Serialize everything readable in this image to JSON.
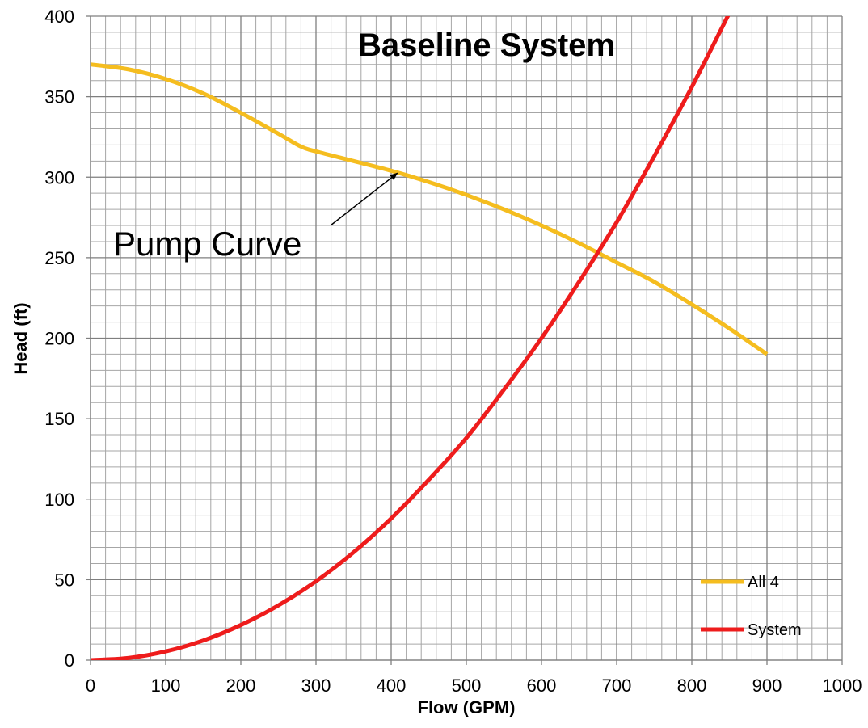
{
  "chart_data": {
    "type": "line",
    "title": "Baseline System",
    "xlabel": "Flow (GPM)",
    "ylabel": "Head (ft)",
    "xlim": [
      0,
      1000
    ],
    "ylim": [
      0,
      400
    ],
    "x_ticks": [
      0,
      100,
      200,
      300,
      400,
      500,
      600,
      700,
      800,
      900,
      1000
    ],
    "y_ticks": [
      0,
      50,
      100,
      150,
      200,
      250,
      300,
      350,
      400
    ],
    "x_tick_labels": [
      "0",
      "100",
      "200",
      "300",
      "400",
      "500",
      "600",
      "700",
      "800",
      "900",
      "1000"
    ],
    "y_tick_labels": [
      "0",
      "50",
      "100",
      "150",
      "200",
      "250",
      "300",
      "350",
      "400"
    ],
    "grid": true,
    "minor_grid_step": {
      "x": 20,
      "y": 10
    },
    "legend_position": "bottom-right",
    "series": [
      {
        "name": "All 4",
        "color": "#f5bd1f",
        "x": [
          0,
          50,
          100,
          150,
          200,
          250,
          280,
          300,
          350,
          400,
          450,
          500,
          550,
          600,
          650,
          700,
          750,
          800,
          850,
          900
        ],
        "y": [
          370,
          367,
          361,
          352,
          340,
          327,
          319,
          316,
          310,
          304,
          297,
          289,
          280,
          270,
          259,
          247,
          235,
          221,
          206,
          190
        ]
      },
      {
        "name": "System",
        "color": "#ee1c1c",
        "x": [
          0,
          50,
          100,
          150,
          200,
          250,
          300,
          350,
          400,
          450,
          500,
          550,
          600,
          650,
          700,
          750,
          800,
          850
        ],
        "y": [
          0,
          1.3,
          5.4,
          12.2,
          21.8,
          34,
          49,
          67,
          88,
          112,
          138,
          168,
          200,
          235,
          272,
          313,
          356,
          402
        ]
      }
    ],
    "annotations": [
      {
        "text": "Pump Curve",
        "points_to": {
          "x": 405,
          "y": 304
        }
      }
    ]
  }
}
